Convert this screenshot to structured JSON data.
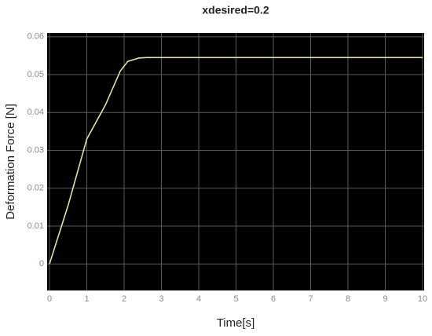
{
  "chart_data": {
    "type": "line",
    "title": "xdesired=0.2",
    "xlabel": "Time[s]",
    "ylabel": "Deformation Force [N]",
    "x": [
      0,
      0.5,
      1,
      1.5,
      1.9,
      2.1,
      2.4,
      2.6,
      10
    ],
    "values": [
      0,
      0.0155,
      0.033,
      0.042,
      0.051,
      0.0535,
      0.0544,
      0.0545,
      0.0545
    ],
    "color": "#e6dfa2",
    "xlim": [
      0,
      10
    ],
    "xticks": [
      0,
      1,
      2,
      3,
      4,
      5,
      6,
      7,
      8,
      9,
      10
    ],
    "ylim": [
      -0.007,
      0.061
    ],
    "yticks": [
      0,
      0.01,
      0.02,
      0.03,
      0.04,
      0.05,
      0.06
    ],
    "grid": true
  }
}
